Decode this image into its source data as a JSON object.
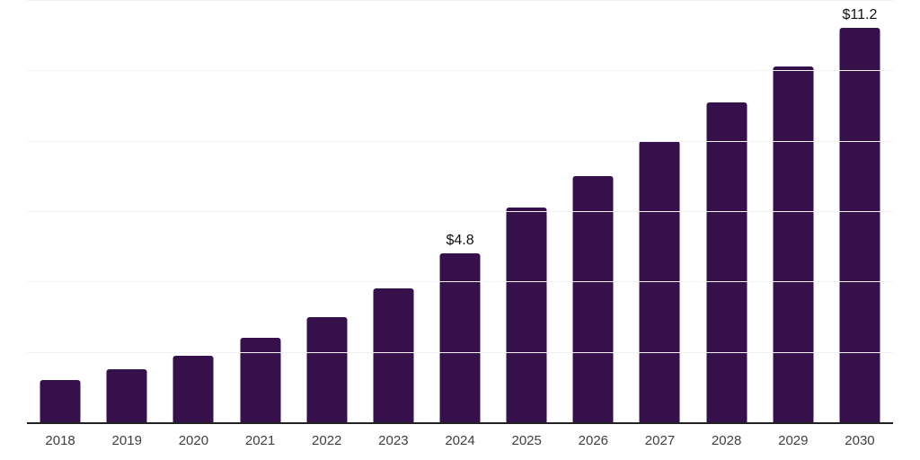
{
  "chart_data": {
    "type": "bar",
    "title": "",
    "xlabel": "",
    "ylabel": "",
    "categories": [
      "2018",
      "2019",
      "2020",
      "2021",
      "2022",
      "2023",
      "2024",
      "2025",
      "2026",
      "2027",
      "2028",
      "2029",
      "2030"
    ],
    "values": [
      1.2,
      1.5,
      1.9,
      2.4,
      3.0,
      3.8,
      4.8,
      6.1,
      7.0,
      8.0,
      9.1,
      10.1,
      11.2
    ],
    "labeled_points": [
      {
        "category": "2024",
        "label": "$4.8"
      },
      {
        "category": "2030",
        "label": "$11.2"
      }
    ],
    "ylim": [
      0,
      12
    ],
    "grid": true,
    "grid_step": 2,
    "y_axis_labels_visible": false,
    "legend": "none",
    "colors": {
      "bar": "#35104A",
      "gridline": "#f2f2f2",
      "axis_line": "#222222",
      "tick_label": "#404040",
      "data_label": "#111111",
      "background": "#ffffff"
    }
  }
}
